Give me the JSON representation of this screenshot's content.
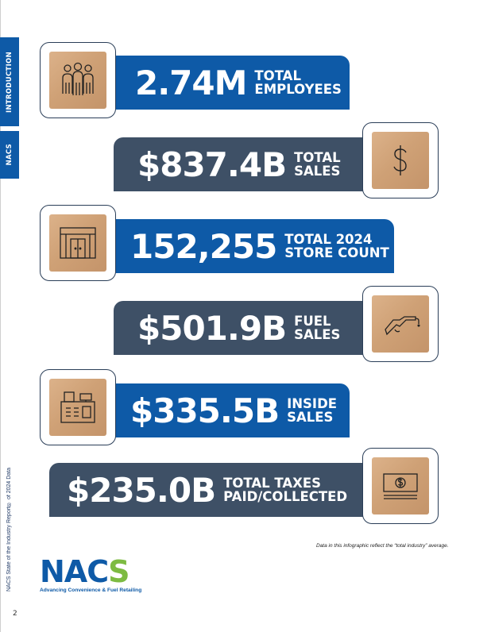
{
  "side_tabs": [
    "INTRODUCTION",
    "NACS"
  ],
  "footer_source": "NACS State of the Industry Report® of 2024 Data",
  "page_number": "2",
  "stats": [
    {
      "value": "2.74M",
      "label1": "TOTAL",
      "label2": "EMPLOYEES",
      "icon": "employees-icon"
    },
    {
      "value": "$837.4B",
      "label1": "TOTAL",
      "label2": "SALES",
      "icon": "dollar-sign-icon"
    },
    {
      "value": "152,255",
      "label1": "TOTAL 2024",
      "label2": "STORE COUNT",
      "icon": "storefront-icon"
    },
    {
      "value": "$501.9B",
      "label1": "FUEL",
      "label2": "SALES",
      "icon": "fuel-nozzle-icon"
    },
    {
      "value": "$335.5B",
      "label1": "INSIDE",
      "label2": "SALES",
      "icon": "cash-register-icon"
    },
    {
      "value": "$235.0B",
      "label1": "TOTAL TAXES",
      "label2": "PAID/COLLECTED",
      "icon": "banknote-icon"
    }
  ],
  "note": "Data in this infographic reflect the “total industry” average.",
  "logo": {
    "text_main": "NAC",
    "text_s": "S",
    "tagline": "Advancing Convenience & Fuel Retailing"
  },
  "colors": {
    "blue": "#0e5aa7",
    "slate": "#3e5066",
    "green": "#7dbb42",
    "wood": "#cfa176"
  }
}
